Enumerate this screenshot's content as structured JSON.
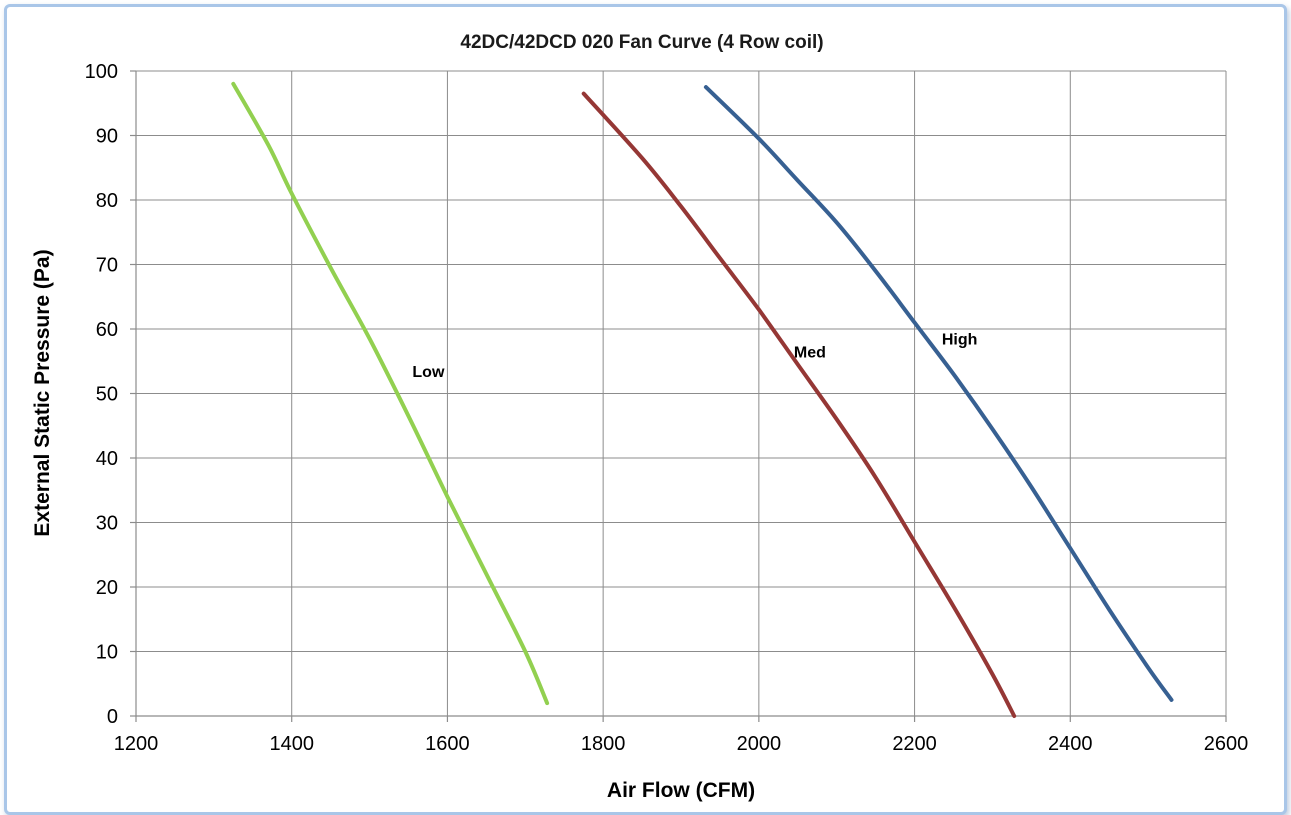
{
  "chart_data": {
    "type": "line",
    "title": "42DC/42DCD 020 Fan Curve (4 Row coil)",
    "xlabel": "Air Flow (CFM)",
    "ylabel": "External Static Pressure (Pa)",
    "xlim": [
      1200,
      2600
    ],
    "ylim": [
      0,
      100
    ],
    "xticks": [
      1200,
      1400,
      1600,
      1800,
      2000,
      2200,
      2400,
      2600
    ],
    "yticks": [
      0,
      10,
      20,
      30,
      40,
      50,
      60,
      70,
      80,
      90,
      100
    ],
    "grid": true,
    "series": [
      {
        "name": "Low",
        "color": "#92d050",
        "x": [
          1325,
          1370,
          1400,
          1450,
          1500,
          1550,
          1600,
          1650,
          1700,
          1728
        ],
        "y": [
          98,
          88.5,
          81,
          69.5,
          58.5,
          46.5,
          34,
          22,
          10,
          2
        ]
      },
      {
        "name": "Med",
        "color": "#953735",
        "x": [
          1775,
          1850,
          1900,
          1950,
          2000,
          2050,
          2100,
          2150,
          2200,
          2250,
          2300,
          2328
        ],
        "y": [
          96.5,
          86.5,
          79,
          71,
          63,
          54.5,
          46,
          37,
          27,
          17,
          6.5,
          0
        ]
      },
      {
        "name": "High",
        "color": "#376092",
        "x": [
          1932,
          2000,
          2050,
          2100,
          2150,
          2200,
          2250,
          2300,
          2350,
          2400,
          2450,
          2500,
          2530
        ],
        "y": [
          97.5,
          89.5,
          83,
          76.5,
          69,
          61,
          53,
          44.5,
          35.5,
          26,
          16.5,
          7.5,
          2.5
        ]
      }
    ],
    "annotations": [
      {
        "text": "Low",
        "x": 1555,
        "y": 53.5
      },
      {
        "text": "Med",
        "x": 2045,
        "y": 56.5
      },
      {
        "text": "High",
        "x": 2235,
        "y": 58.5
      }
    ]
  }
}
